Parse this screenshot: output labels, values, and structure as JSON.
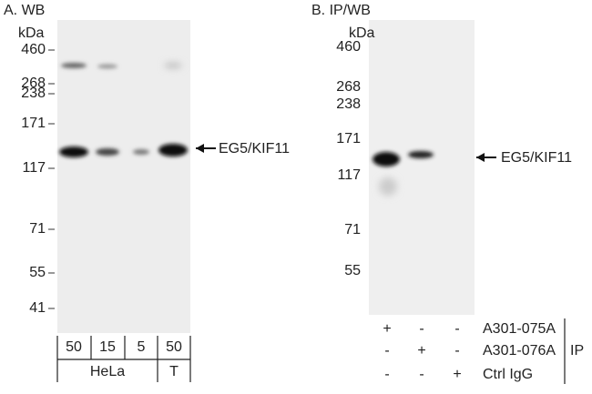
{
  "panels": [
    {
      "label": "A. WB",
      "unit": "kDa",
      "markers": [
        "460",
        "268",
        "238",
        "171",
        "117",
        "71",
        "55",
        "41"
      ],
      "target": "EG5/KIF11",
      "lanes": [
        "50",
        "15",
        "5",
        "50"
      ],
      "groups": [
        "HeLa",
        "T"
      ]
    },
    {
      "label": "B. IP/WB",
      "unit": "kDa",
      "markers": [
        "460",
        "268",
        "238",
        "171",
        "117",
        "71",
        "55"
      ],
      "target": "EG5/KIF11",
      "rows": [
        {
          "signs": [
            "+",
            "-",
            "-"
          ],
          "name": "A301-075A"
        },
        {
          "signs": [
            "-",
            "+",
            "-"
          ],
          "name": "A301-076A"
        },
        {
          "signs": [
            "-",
            "-",
            "+"
          ],
          "name": "Ctrl IgG"
        }
      ],
      "side": "IP"
    }
  ]
}
